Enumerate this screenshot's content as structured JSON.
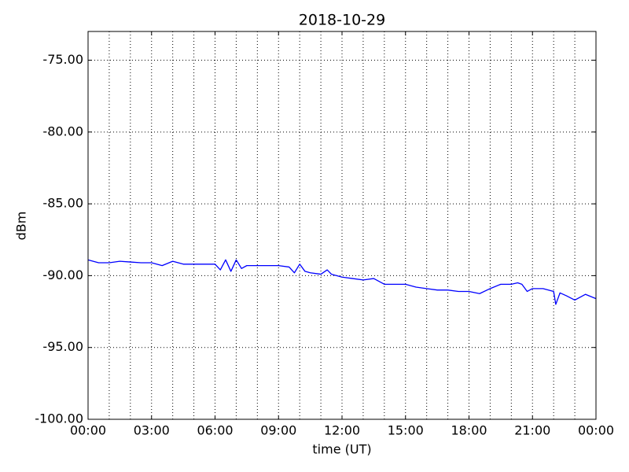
{
  "chart_data": {
    "type": "line",
    "title": "2018-10-29",
    "xlabel": "time (UT)",
    "ylabel": "dBm",
    "color": "#0000ff",
    "grid": true,
    "x": [
      0,
      0.5,
      1,
      1.5,
      2,
      2.5,
      3,
      3.5,
      4,
      4.5,
      5,
      5.5,
      6,
      6.25,
      6.5,
      6.75,
      7,
      7.25,
      7.5,
      8,
      8.5,
      9,
      9.5,
      9.75,
      10,
      10.25,
      10.5,
      11,
      11.3,
      11.5,
      12,
      12.5,
      13,
      13.5,
      14,
      14.5,
      15,
      15.5,
      16,
      16.5,
      17,
      17.5,
      18,
      18.5,
      19,
      19.5,
      20,
      20.3,
      20.5,
      20.75,
      21,
      21.5,
      22,
      22.1,
      22.3,
      22.6,
      23,
      23.5,
      24
    ],
    "values": [
      -88.9,
      -89.1,
      -89.1,
      -89.0,
      -89.05,
      -89.1,
      -89.1,
      -89.3,
      -89.0,
      -89.2,
      -89.2,
      -89.2,
      -89.2,
      -89.6,
      -88.9,
      -89.7,
      -88.9,
      -89.5,
      -89.3,
      -89.3,
      -89.3,
      -89.3,
      -89.4,
      -89.8,
      -89.2,
      -89.7,
      -89.8,
      -89.9,
      -89.6,
      -89.9,
      -90.1,
      -90.2,
      -90.3,
      -90.2,
      -90.6,
      -90.6,
      -90.6,
      -90.8,
      -90.9,
      -91.0,
      -91.0,
      -91.1,
      -91.1,
      -91.25,
      -90.9,
      -90.6,
      -90.6,
      -90.5,
      -90.6,
      -91.1,
      -90.9,
      -90.9,
      -91.1,
      -92.0,
      -91.2,
      -91.4,
      -91.7,
      -91.3,
      -91.6
    ],
    "xlim": [
      0,
      24
    ],
    "xticks": [
      {
        "value": 0,
        "label": "00:00"
      },
      {
        "value": 3,
        "label": "03:00"
      },
      {
        "value": 6,
        "label": "06:00"
      },
      {
        "value": 9,
        "label": "09:00"
      },
      {
        "value": 12,
        "label": "12:00"
      },
      {
        "value": 15,
        "label": "15:00"
      },
      {
        "value": 18,
        "label": "18:00"
      },
      {
        "value": 21,
        "label": "21:00"
      },
      {
        "value": 24,
        "label": "00:00"
      }
    ],
    "xgrid": [
      0,
      1,
      2,
      3,
      4,
      5,
      6,
      7,
      8,
      9,
      10,
      11,
      12,
      13,
      14,
      15,
      16,
      17,
      18,
      19,
      20,
      21,
      22,
      23,
      24
    ],
    "ylim": [
      -100,
      -73
    ],
    "yticks": [
      {
        "value": -100,
        "label": "-100.00"
      },
      {
        "value": -95,
        "label": "-95.00"
      },
      {
        "value": -90,
        "label": "-90.00"
      },
      {
        "value": -85,
        "label": "-85.00"
      },
      {
        "value": -80,
        "label": "-80.00"
      },
      {
        "value": -75,
        "label": "-75.00"
      }
    ]
  }
}
